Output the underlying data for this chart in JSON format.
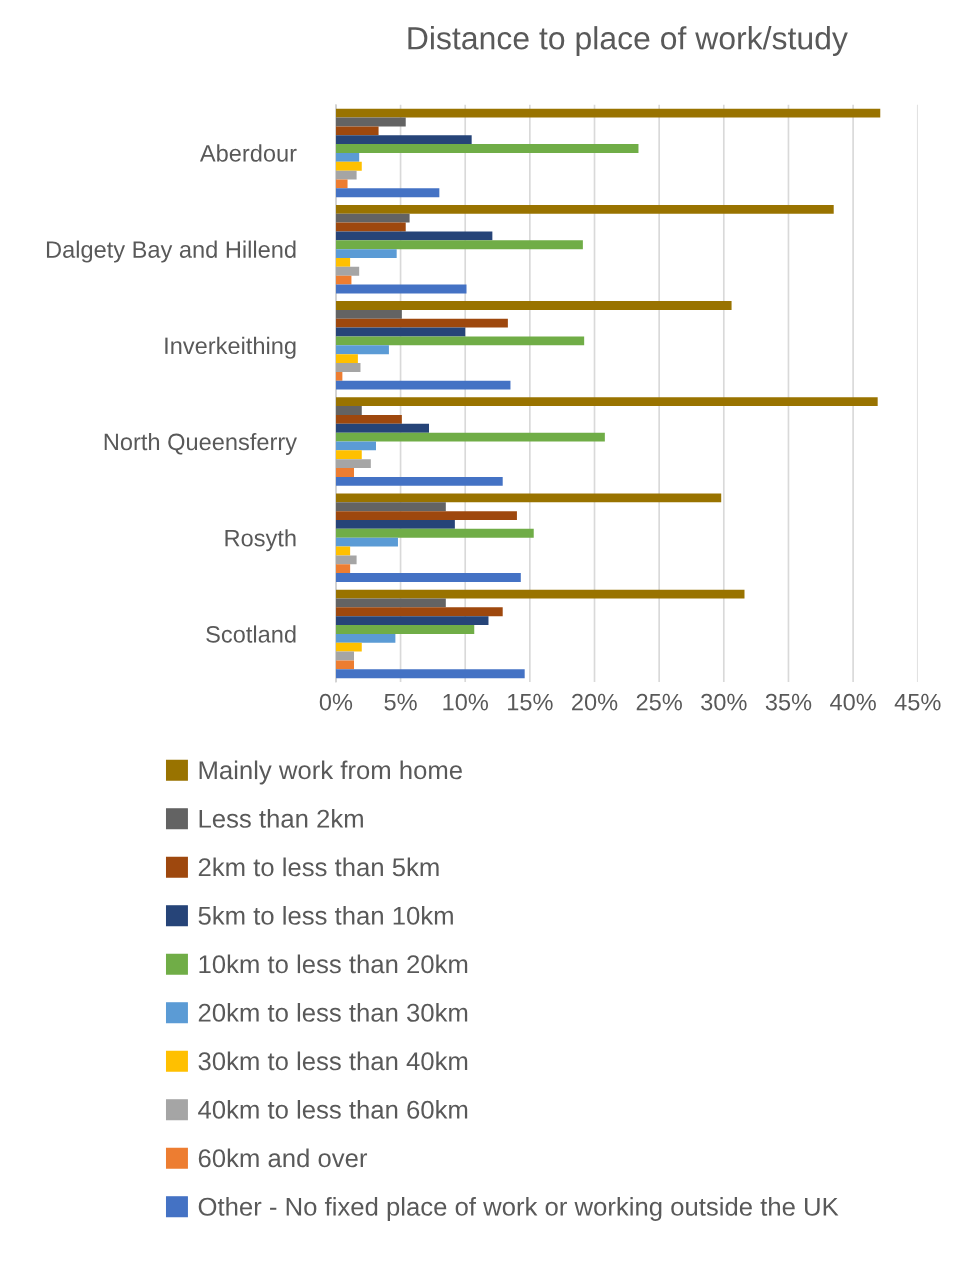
{
  "chart_data": {
    "type": "bar",
    "orientation": "horizontal",
    "title": "Distance to place of work/study",
    "categories": [
      "Aberdour",
      "Dalgety Bay and Hillend",
      "Inverkeithing",
      "North Queensferry",
      "Rosyth",
      "Scotland"
    ],
    "series": [
      {
        "name": "Mainly work from home",
        "color": "#997300",
        "values": [
          42.1,
          38.5,
          30.6,
          41.9,
          29.8,
          31.6
        ]
      },
      {
        "name": "Less than 2km",
        "color": "#636363",
        "values": [
          5.4,
          5.7,
          5.1,
          2.0,
          8.5,
          8.5
        ]
      },
      {
        "name": "2km to less than 5km",
        "color": "#9e480e",
        "values": [
          3.3,
          5.4,
          13.3,
          5.1,
          14.0,
          12.9
        ]
      },
      {
        "name": "5km to less than 10km",
        "color": "#264478",
        "values": [
          10.5,
          12.1,
          10.0,
          7.2,
          9.2,
          11.8
        ]
      },
      {
        "name": "10km to less than 20km",
        "color": "#70ad47",
        "values": [
          23.4,
          19.1,
          19.2,
          20.8,
          15.3,
          10.7
        ]
      },
      {
        "name": "20km to less than 30km",
        "color": "#5b9bd5",
        "values": [
          1.8,
          4.7,
          4.1,
          3.1,
          4.8,
          4.6
        ]
      },
      {
        "name": "30km to less than 40km",
        "color": "#ffc000",
        "values": [
          2.0,
          1.1,
          1.7,
          2.0,
          1.1,
          2.0
        ]
      },
      {
        "name": "40km to less than 60km",
        "color": "#a5a5a5",
        "values": [
          1.6,
          1.8,
          1.9,
          2.7,
          1.6,
          1.4
        ]
      },
      {
        "name": "60km and over",
        "color": "#ed7d31",
        "values": [
          0.9,
          1.2,
          0.5,
          1.4,
          1.1,
          1.4
        ]
      },
      {
        "name": "Other - No fixed place of work or working outside the UK",
        "color": "#4472c4",
        "values": [
          8.0,
          10.1,
          13.5,
          12.9,
          14.3,
          14.6
        ]
      }
    ],
    "xlim": [
      0,
      45
    ],
    "xticks": [
      {
        "value": 0,
        "label": "0%"
      },
      {
        "value": 5,
        "label": "5%"
      },
      {
        "value": 10,
        "label": "10%"
      },
      {
        "value": 15,
        "label": "15%"
      },
      {
        "value": 20,
        "label": "20%"
      },
      {
        "value": 25,
        "label": "25%"
      },
      {
        "value": 30,
        "label": "30%"
      },
      {
        "value": 35,
        "label": "35%"
      },
      {
        "value": 40,
        "label": "40%"
      },
      {
        "value": 45,
        "label": "45%"
      }
    ],
    "grid": "x",
    "legend": "bottom"
  }
}
